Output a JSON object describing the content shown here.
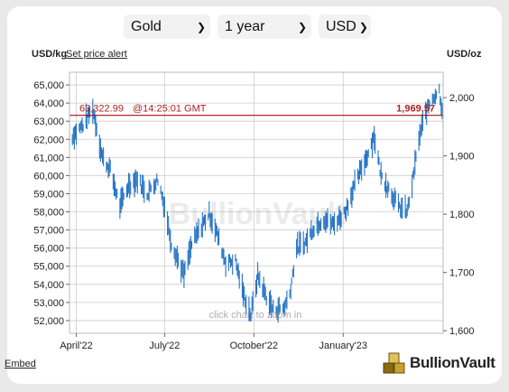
{
  "controls": {
    "metal": "Gold",
    "period": "1 year",
    "currency": "USD"
  },
  "header": {
    "left_unit": "USD/kg",
    "alert_link": "Set price alert",
    "right_unit": "USD/oz"
  },
  "footer": {
    "embed_link": "Embed",
    "brand": "BullionVault"
  },
  "colors": {
    "series": "#2673c4",
    "price_line": "#a01010",
    "price_text": "#b02020",
    "grid": "#cccccc"
  },
  "chart_data": {
    "type": "bar",
    "subtype": "high-low",
    "grid": true,
    "watermark": "BullionVault",
    "hint": "click chart to zoom in",
    "x_axis": {
      "range": [
        "2022-03-25",
        "2023-04-14"
      ],
      "ticks": [
        {
          "date": "2022-04-01",
          "label": "April'22"
        },
        {
          "date": "2022-07-01",
          "label": "July'22"
        },
        {
          "date": "2022-10-01",
          "label": "October'22"
        },
        {
          "date": "2023-01-01",
          "label": "January'23"
        }
      ]
    },
    "y_left": {
      "unit": "USD/kg",
      "range": [
        51300,
        65700
      ],
      "ticks": [
        52000,
        53000,
        54000,
        55000,
        56000,
        57000,
        58000,
        59000,
        60000,
        61000,
        62000,
        63000,
        64000,
        65000
      ],
      "tick_labels": [
        "52,000",
        "53,000",
        "54,000",
        "55,000",
        "56,000",
        "57,000",
        "58,000",
        "59,000",
        "60,000",
        "61,000",
        "62,000",
        "63,000",
        "64,000",
        "65,000"
      ]
    },
    "y_right": {
      "unit": "USD/oz",
      "range": [
        1595.6,
        2043.5
      ],
      "ticks": [
        1600,
        1700,
        1800,
        1900,
        2000
      ],
      "tick_labels": [
        "1,600",
        "1,700",
        "1,800",
        "1,900",
        "2,000"
      ]
    },
    "current": {
      "value_kg": 63322.99,
      "value_kg_label": "63,322.99",
      "time_label": "@14:25:01 GMT",
      "value_oz": 1969.57,
      "value_oz_label": "1,969.57"
    },
    "keyframes": [
      {
        "date": "2022-03-25",
        "value": 62000
      },
      {
        "date": "2022-04-01",
        "value": 62400
      },
      {
        "date": "2022-04-08",
        "value": 62800
      },
      {
        "date": "2022-04-18",
        "value": 63700
      },
      {
        "date": "2022-04-28",
        "value": 61000
      },
      {
        "date": "2022-05-06",
        "value": 60300
      },
      {
        "date": "2022-05-16",
        "value": 58300
      },
      {
        "date": "2022-05-25",
        "value": 59500
      },
      {
        "date": "2022-06-03",
        "value": 59800
      },
      {
        "date": "2022-06-13",
        "value": 59000
      },
      {
        "date": "2022-06-24",
        "value": 59800
      },
      {
        "date": "2022-07-01",
        "value": 58300
      },
      {
        "date": "2022-07-08",
        "value": 56300
      },
      {
        "date": "2022-07-21",
        "value": 54500
      },
      {
        "date": "2022-07-29",
        "value": 56200
      },
      {
        "date": "2022-08-09",
        "value": 57300
      },
      {
        "date": "2022-08-16",
        "value": 57900
      },
      {
        "date": "2022-08-24",
        "value": 56800
      },
      {
        "date": "2022-09-02",
        "value": 55200
      },
      {
        "date": "2022-09-12",
        "value": 55300
      },
      {
        "date": "2022-09-20",
        "value": 53500
      },
      {
        "date": "2022-09-28",
        "value": 52300
      },
      {
        "date": "2022-10-05",
        "value": 54500
      },
      {
        "date": "2022-10-14",
        "value": 53300
      },
      {
        "date": "2022-10-21",
        "value": 52600
      },
      {
        "date": "2022-11-01",
        "value": 52700
      },
      {
        "date": "2022-11-07",
        "value": 53500
      },
      {
        "date": "2022-11-14",
        "value": 56000
      },
      {
        "date": "2022-11-23",
        "value": 56300
      },
      {
        "date": "2022-12-01",
        "value": 57100
      },
      {
        "date": "2022-12-12",
        "value": 57600
      },
      {
        "date": "2022-12-22",
        "value": 57300
      },
      {
        "date": "2023-01-03",
        "value": 58000
      },
      {
        "date": "2023-01-13",
        "value": 59500
      },
      {
        "date": "2023-01-25",
        "value": 61000
      },
      {
        "date": "2023-02-02",
        "value": 62200
      },
      {
        "date": "2023-02-09",
        "value": 60000
      },
      {
        "date": "2023-02-17",
        "value": 59300
      },
      {
        "date": "2023-02-27",
        "value": 58300
      },
      {
        "date": "2023-03-08",
        "value": 58000
      },
      {
        "date": "2023-03-13",
        "value": 59500
      },
      {
        "date": "2023-03-20",
        "value": 62000
      },
      {
        "date": "2023-03-27",
        "value": 63500
      },
      {
        "date": "2023-04-03",
        "value": 64300
      },
      {
        "date": "2023-04-10",
        "value": 64700
      },
      {
        "date": "2023-04-14",
        "value": 63300
      }
    ]
  }
}
